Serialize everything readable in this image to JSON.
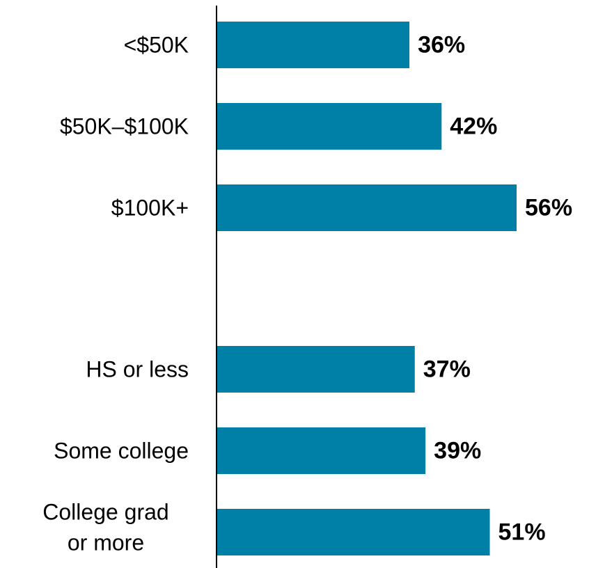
{
  "chart_data": {
    "type": "bar",
    "orientation": "horizontal",
    "categories": [
      "<$50K",
      "$50K–$100K",
      "$100K+",
      "HS or less",
      "Some college",
      "College grad or more"
    ],
    "category_lines": [
      [
        "<$50K"
      ],
      [
        "$50K–$100K"
      ],
      [
        "$100K+"
      ],
      [
        "HS or less"
      ],
      [
        "Some college"
      ],
      [
        "College grad",
        "or more"
      ]
    ],
    "values": [
      36,
      42,
      56,
      37,
      39,
      51
    ],
    "value_labels": [
      "36%",
      "42%",
      "56%",
      "37%",
      "39%",
      "51%"
    ],
    "groups": [
      [
        0,
        1,
        2
      ],
      [
        3,
        4,
        5
      ]
    ],
    "title": "",
    "xlabel": "",
    "ylabel": "",
    "xlim": [
      0,
      56
    ],
    "grid": false,
    "legend": "none",
    "bar_color": "#0080A6",
    "axis_color": "#000000"
  }
}
